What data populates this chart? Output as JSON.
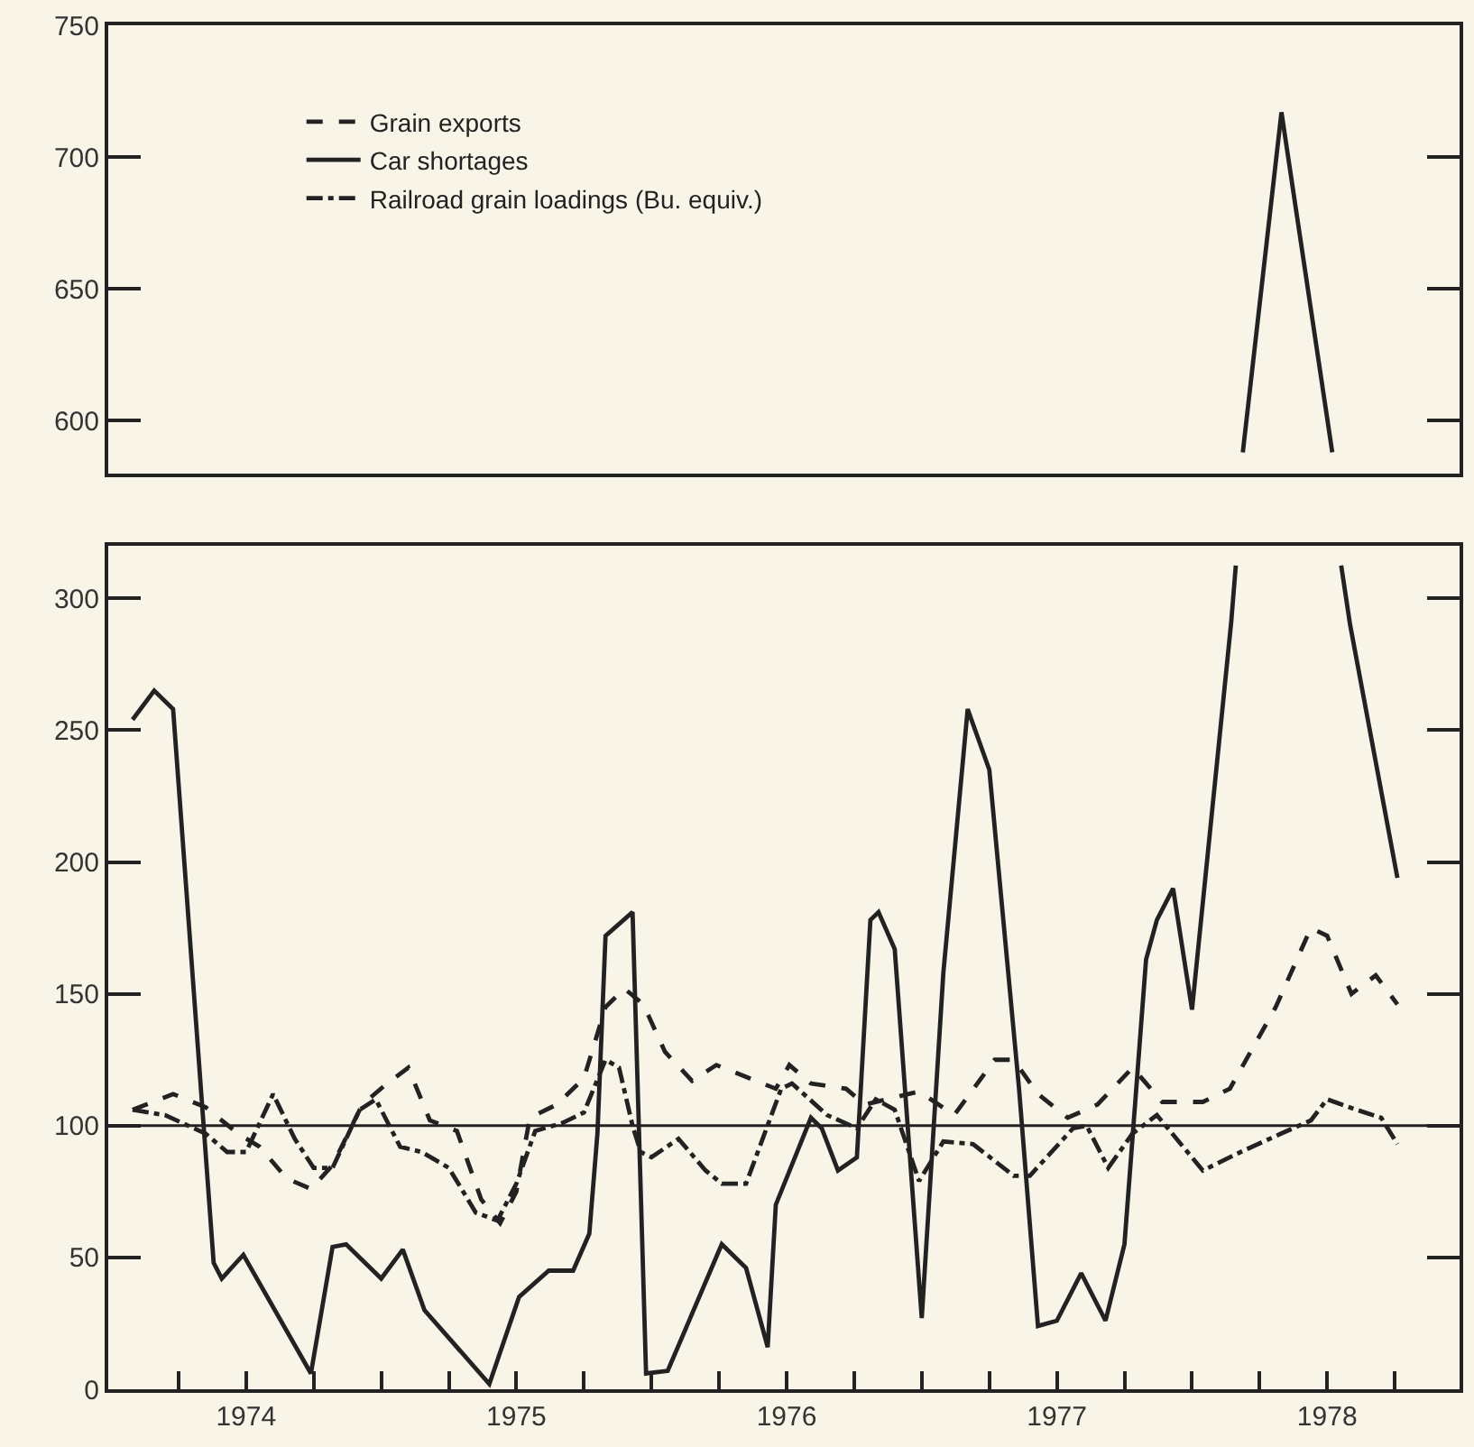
{
  "chart_data": [
    {
      "type": "line",
      "xlim": [
        1973.49,
        1978.49
      ],
      "ylim": [
        580,
        750
      ],
      "yticks": [
        600,
        650,
        700,
        750
      ],
      "tick_labels": "y",
      "grid": false,
      "marker": "none",
      "series": [
        {
          "color": "#222222",
          "line_style": "solid",
          "x": [
            1977.688,
            1977.831,
            1978.019
          ],
          "values": [
            588,
            717,
            588
          ]
        }
      ]
    },
    {
      "type": "line",
      "xlim": [
        1973.49,
        1978.49
      ],
      "ylim": [
        0,
        320
      ],
      "yticks": [
        0,
        50,
        100,
        150,
        200,
        250,
        300
      ],
      "xticks": [
        {
          "value": 1973.75,
          "label": null
        },
        1974,
        {
          "value": 1974.25,
          "label": null
        },
        {
          "value": 1974.5,
          "label": null
        },
        {
          "value": 1974.75,
          "label": null
        },
        1975,
        {
          "value": 1975.25,
          "label": null
        },
        {
          "value": 1975.5,
          "label": null
        },
        {
          "value": 1975.75,
          "label": null
        },
        1976,
        {
          "value": 1976.25,
          "label": null
        },
        {
          "value": 1976.5,
          "label": null
        },
        {
          "value": 1976.75,
          "label": null
        },
        1977,
        {
          "value": 1977.25,
          "label": null
        },
        {
          "value": 1977.5,
          "label": null
        },
        {
          "value": 1977.75,
          "label": null
        },
        1978,
        {
          "value": 1978.25,
          "label": null
        }
      ],
      "grid": false,
      "marker": "none",
      "legend": "top left",
      "ref_lines": [
        {
          "axis": "y",
          "value": 100,
          "color": "#222222",
          "line_style": "solid"
        }
      ],
      "series": [
        {
          "name": "Grain exports",
          "color": "#222222",
          "line_style": "dashed",
          "x": [
            1973.58,
            1973.73,
            1973.85,
            1973.97,
            1974.05,
            1974.15,
            1974.24,
            1974.32,
            1974.43,
            1974.51,
            1974.6,
            1974.68,
            1974.78,
            1974.87,
            1974.94,
            1975.0,
            1975.05,
            1975.15,
            1975.25,
            1975.33,
            1975.4,
            1975.47,
            1975.55,
            1975.65,
            1975.74,
            1975.96,
            1976.01,
            1976.09,
            1976.22,
            1976.29,
            1976.49,
            1976.62,
            1976.77,
            1976.84,
            1976.93,
            1977.04,
            1977.15,
            1977.28,
            1977.39,
            1977.54,
            1977.64,
            1977.81,
            1977.94,
            1978.0,
            1978.09,
            1978.18,
            1978.26
          ],
          "values": [
            106,
            112,
            107,
            97,
            92,
            80,
            76,
            85,
            108,
            115,
            122,
            102,
            98,
            72,
            63,
            75,
            103,
            108,
            118,
            145,
            152,
            146,
            128,
            117,
            123,
            114,
            123,
            116,
            114,
            108,
            113,
            104,
            125,
            125,
            112,
            103,
            108,
            122,
            109,
            109,
            114,
            145,
            175,
            172,
            150,
            157,
            146
          ]
        },
        {
          "name": "Car shortages",
          "color": "#222222",
          "line_style": "solid",
          "x": [
            1973.58,
            1973.66,
            1973.73,
            1973.88,
            1973.91,
            1973.99,
            1974.24,
            1974.32,
            1974.37,
            1974.5,
            1974.58,
            1974.66,
            1974.9,
            1975.01,
            1975.12,
            1975.21,
            1975.27,
            1975.3,
            1975.33,
            1975.43,
            1975.48,
            1975.56,
            1975.76,
            1975.85,
            1975.93,
            1975.96,
            1976.09,
            1976.13,
            1976.19,
            1976.26,
            1976.31,
            1976.34,
            1976.4,
            1976.5,
            1976.58,
            1976.67,
            1976.75,
            1976.86,
            1976.93,
            1977.0,
            1977.09,
            1977.18,
            1977.25,
            1977.33,
            1977.37,
            1977.43,
            1977.5,
            1977.645,
            1977.662,
            1977.85,
            1978.052,
            1978.085,
            1978.26
          ],
          "values": [
            254,
            265,
            258,
            48,
            42,
            51,
            6,
            54,
            55,
            42,
            53,
            30,
            2,
            35,
            45,
            45,
            59,
            97,
            172,
            181,
            6,
            7,
            55,
            46,
            16,
            70,
            103,
            99,
            83,
            88,
            178,
            181,
            167,
            27,
            158,
            258,
            235,
            114,
            24,
            26,
            44,
            26,
            55,
            163,
            178,
            190,
            144,
            291,
            312.5,
            null,
            312.5,
            290,
            194
          ]
        },
        {
          "name": "Railroad grain loadings (Bu. equiv.)",
          "color": "#222222",
          "line_style": "dashdot",
          "x": [
            1973.58,
            1973.7,
            1973.85,
            1973.93,
            1974.0,
            1974.1,
            1974.18,
            1974.25,
            1974.32,
            1974.42,
            1974.48,
            1974.57,
            1974.65,
            1974.75,
            1974.85,
            1974.93,
            1975.0,
            1975.07,
            1975.17,
            1975.25,
            1975.33,
            1975.38,
            1975.43,
            1975.46,
            1975.5,
            1975.6,
            1975.7,
            1975.76,
            1975.85,
            1975.98,
            1976.02,
            1976.15,
            1976.26,
            1976.33,
            1976.4,
            1976.49,
            1976.58,
            1976.69,
            1976.84,
            1976.9,
            1977.06,
            1977.11,
            1977.19,
            1977.28,
            1977.37,
            1977.54,
            1977.68,
            1977.83,
            1977.94,
            1978.0,
            1978.11,
            1978.2,
            1978.26
          ],
          "values": [
            106,
            104,
            97,
            90,
            90,
            112,
            95,
            84,
            84,
            106,
            110,
            92,
            90,
            84,
            67,
            64,
            78,
            98,
            101,
            105,
            125,
            122,
            100,
            90,
            88,
            95,
            83,
            78,
            78,
            114,
            116,
            104,
            99,
            110,
            106,
            79,
            94,
            93,
            81,
            81,
            99,
            100,
            84,
            97,
            104,
            83,
            90,
            97,
            102,
            110,
            106,
            103,
            93
          ]
        }
      ]
    }
  ]
}
